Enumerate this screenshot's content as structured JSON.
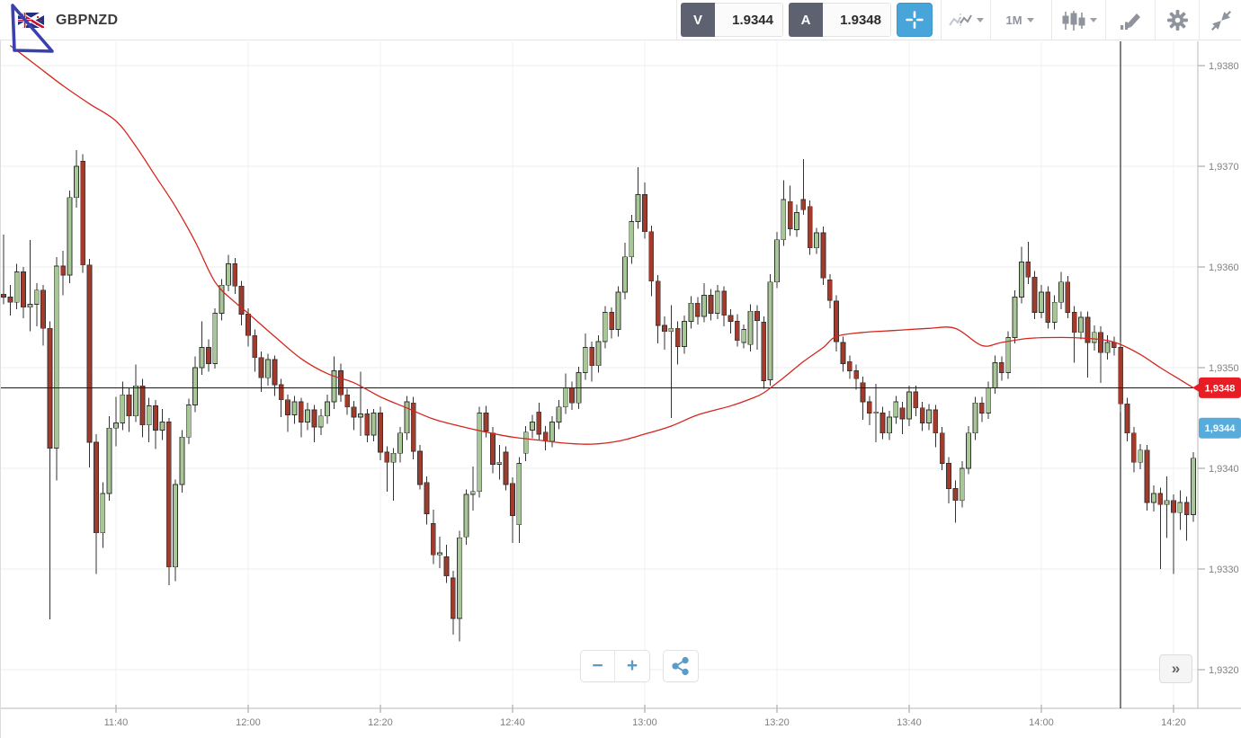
{
  "header": {
    "symbol": "GBPNZD",
    "sell": {
      "label": "V",
      "value": "1.9344"
    },
    "buy": {
      "label": "A",
      "value": "1.9348"
    },
    "timeframe": "1M"
  },
  "controls": {
    "zoom_out": "−",
    "zoom_in": "+",
    "expand": "»"
  },
  "icons": {
    "crosshair": "crosshair-icon",
    "chart_type": "chart-type-icon",
    "indicators": "candlestick-icon",
    "draw": "pencil-icon",
    "settings": "gear-icon",
    "collapse": "collapse-icon",
    "share": "share-icon",
    "flag": "gbp-nzd-flag-icon"
  },
  "chart_data": {
    "type": "candlestick",
    "symbol": "GBPNZD",
    "timeframe": "1M",
    "start_time": "11:23",
    "interval_minutes": 1,
    "price_base": 1.93,
    "pip_unit": 0.0001,
    "y_axis": {
      "min": 1.932,
      "max": 1.938,
      "tick_step": 0.001,
      "decimal_format": "comma",
      "labels": [
        "1,9380",
        "1,9370",
        "1,9360",
        "1,9350",
        "1,9340",
        "1,9330",
        "1,9320"
      ]
    },
    "x_axis": {
      "labels": [
        "11:40",
        "12:00",
        "12:20",
        "12:40",
        "13:00",
        "13:20",
        "13:40",
        "14:00",
        "14:20"
      ],
      "first_label_minute_index": 17,
      "label_every_minutes": 20
    },
    "ask_price": 1.9348,
    "bid_price": 1.9344,
    "ask_line": {
      "pips": 48,
      "badge": "1,9348",
      "color": "#e81c24",
      "line_color": "#1a1a1a"
    },
    "bid_badge": {
      "pips": 44,
      "label": "1,9344",
      "color": "#58acdc"
    },
    "vertical_marker_minute_index": 169,
    "colors": {
      "up_fill": "#a8c796",
      "down_fill": "#a23b2b",
      "stroke": "#333333",
      "wick": "#333333",
      "grid": "#ededed",
      "vgrid": "#f1f1f1",
      "axis": "#b9b9b9",
      "label": "#7f7f7f"
    },
    "ma_line": {
      "color": "#d4261d",
      "anchors_pips": [
        [
          1,
          82
        ],
        [
          5,
          80
        ],
        [
          9,
          78
        ],
        [
          13,
          76.2
        ],
        [
          17,
          74.5
        ],
        [
          20,
          72
        ],
        [
          23,
          69
        ],
        [
          26,
          66
        ],
        [
          29,
          62.5
        ],
        [
          32,
          58.5
        ],
        [
          35,
          56.5
        ],
        [
          37,
          55.4
        ],
        [
          41,
          53.1
        ],
        [
          45,
          50.9
        ],
        [
          49,
          49.4
        ],
        [
          53,
          48.5
        ],
        [
          57,
          47.1
        ],
        [
          61,
          46
        ],
        [
          65,
          44.9
        ],
        [
          69,
          44.2
        ],
        [
          73,
          43.6
        ],
        [
          77,
          43.1
        ],
        [
          81,
          42.8
        ],
        [
          85,
          42.5
        ],
        [
          89,
          42.4
        ],
        [
          93,
          42.7
        ],
        [
          97,
          43.4
        ],
        [
          101,
          44.2
        ],
        [
          105,
          45.3
        ],
        [
          110,
          46.2
        ],
        [
          113,
          46.9
        ],
        [
          115,
          47.5
        ],
        [
          118,
          49
        ],
        [
          121,
          50.6
        ],
        [
          124,
          52
        ],
        [
          126,
          53.1
        ],
        [
          130,
          53.5
        ],
        [
          135,
          53.7
        ],
        [
          140,
          53.9
        ],
        [
          144,
          53.9
        ],
        [
          148,
          52.2
        ],
        [
          151,
          52.5
        ],
        [
          155,
          52.9
        ],
        [
          160,
          53
        ],
        [
          164,
          52.9
        ],
        [
          167,
          52.7
        ],
        [
          169,
          52.3
        ],
        [
          172,
          51.3
        ],
        [
          175,
          50
        ],
        [
          178,
          48.8
        ],
        [
          180,
          48
        ]
      ]
    },
    "candles_ohlc_pips": [
      [
        57.3,
        63.2,
        56.3,
        57.0
      ],
      [
        57.0,
        58.2,
        55.2,
        56.5
      ],
      [
        56.5,
        60.3,
        55.8,
        59.5
      ],
      [
        59.5,
        60.0,
        54.9,
        56.0
      ],
      [
        56.0,
        62.7,
        53.6,
        56.3
      ],
      [
        56.3,
        58.4,
        54.1,
        57.7
      ],
      [
        57.7,
        58.2,
        52.2,
        53.9
      ],
      [
        53.9,
        54.6,
        25.0,
        42.0
      ],
      [
        42.0,
        61.0,
        38.8,
        60.1
      ],
      [
        60.1,
        61.6,
        57.2,
        59.2
      ],
      [
        59.2,
        67.6,
        58.4,
        66.9
      ],
      [
        66.9,
        71.6,
        65.9,
        70.0
      ],
      [
        70.5,
        71.2,
        59.4,
        60.2
      ],
      [
        60.2,
        60.8,
        40.1,
        42.6
      ],
      [
        42.6,
        43.4,
        29.5,
        33.6
      ],
      [
        33.6,
        38.6,
        32.1,
        37.5
      ],
      [
        37.5,
        45.2,
        36.8,
        44.0
      ],
      [
        44.0,
        47.1,
        42.2,
        44.5
      ],
      [
        44.5,
        48.6,
        43.8,
        47.3
      ],
      [
        47.3,
        48.0,
        43.6,
        45.2
      ],
      [
        45.2,
        50.3,
        44.6,
        48.2
      ],
      [
        48.2,
        48.9,
        43.1,
        44.3
      ],
      [
        44.3,
        47.0,
        42.6,
        46.2
      ],
      [
        46.2,
        46.8,
        41.9,
        43.8
      ],
      [
        43.8,
        45.9,
        42.8,
        44.6
      ],
      [
        44.6,
        45.0,
        28.4,
        30.2
      ],
      [
        30.2,
        38.9,
        28.8,
        38.4
      ],
      [
        38.4,
        43.8,
        37.6,
        43.1
      ],
      [
        43.1,
        46.9,
        42.4,
        46.3
      ],
      [
        46.3,
        51.1,
        45.6,
        50.0
      ],
      [
        50.0,
        54.6,
        49.3,
        52.0
      ],
      [
        52.0,
        52.8,
        49.6,
        50.4
      ],
      [
        50.4,
        55.9,
        49.9,
        55.4
      ],
      [
        55.4,
        58.8,
        54.7,
        58.2
      ],
      [
        58.2,
        61.2,
        57.6,
        60.3
      ],
      [
        60.3,
        60.9,
        57.3,
        58.1
      ],
      [
        58.1,
        58.6,
        54.2,
        55.3
      ],
      [
        55.3,
        55.9,
        52.1,
        53.2
      ],
      [
        53.2,
        53.8,
        49.6,
        51.0
      ],
      [
        51.0,
        51.6,
        47.6,
        49.0
      ],
      [
        49.0,
        51.4,
        48.2,
        50.8
      ],
      [
        50.8,
        51.2,
        47.2,
        48.3
      ],
      [
        48.3,
        48.9,
        45.1,
        46.8
      ],
      [
        46.8,
        47.3,
        43.6,
        45.3
      ],
      [
        45.3,
        47.2,
        44.4,
        46.6
      ],
      [
        46.6,
        47.0,
        43.1,
        44.6
      ],
      [
        44.6,
        46.5,
        43.8,
        45.8
      ],
      [
        45.8,
        46.3,
        42.6,
        44.1
      ],
      [
        44.1,
        45.9,
        43.3,
        45.2
      ],
      [
        45.2,
        47.3,
        44.4,
        46.6
      ],
      [
        46.6,
        51.1,
        45.9,
        49.7
      ],
      [
        49.7,
        50.4,
        46.6,
        47.3
      ],
      [
        47.3,
        47.9,
        45.3,
        46.1
      ],
      [
        46.1,
        46.7,
        43.8,
        45.1
      ],
      [
        45.1,
        49.6,
        43.2,
        45.4
      ],
      [
        45.4,
        45.9,
        42.6,
        43.3
      ],
      [
        43.3,
        45.9,
        42.7,
        45.5
      ],
      [
        45.5,
        46.1,
        40.8,
        41.6
      ],
      [
        41.6,
        42.2,
        37.7,
        40.6
      ],
      [
        40.6,
        42.0,
        36.8,
        41.5
      ],
      [
        41.5,
        44.1,
        40.6,
        43.5
      ],
      [
        43.5,
        47.2,
        42.8,
        46.6
      ],
      [
        46.5,
        47.1,
        40.9,
        41.7
      ],
      [
        41.7,
        42.3,
        37.9,
        38.4
      ],
      [
        38.6,
        39.2,
        34.4,
        35.5
      ],
      [
        34.5,
        35.9,
        30.5,
        31.4
      ],
      [
        31.4,
        33.2,
        30.1,
        31.6
      ],
      [
        31.2,
        32.4,
        28.6,
        29.3
      ],
      [
        29.1,
        29.8,
        23.5,
        25.1
      ],
      [
        25.1,
        33.8,
        22.8,
        33.1
      ],
      [
        33.2,
        37.9,
        32.4,
        37.4
      ],
      [
        37.4,
        40.2,
        35.8,
        37.7
      ],
      [
        37.7,
        46.1,
        37.1,
        45.5
      ],
      [
        45.5,
        46.2,
        43.1,
        43.7
      ],
      [
        43.5,
        44.1,
        39.5,
        40.4
      ],
      [
        40.4,
        42.3,
        38.9,
        40.6
      ],
      [
        41.6,
        42.2,
        37.8,
        38.4
      ],
      [
        38.5,
        39.1,
        32.6,
        35.3
      ],
      [
        34.4,
        41.1,
        32.6,
        40.5
      ],
      [
        41.5,
        44.2,
        40.7,
        43.6
      ],
      [
        43.8,
        45.3,
        43.0,
        44.6
      ],
      [
        45.6,
        46.5,
        42.8,
        43.4
      ],
      [
        43.6,
        44.2,
        41.8,
        42.7
      ],
      [
        42.7,
        45.2,
        42.1,
        44.6
      ],
      [
        44.6,
        46.8,
        43.9,
        46.1
      ],
      [
        46.1,
        49.4,
        45.4,
        48.0
      ],
      [
        48.0,
        48.6,
        45.8,
        46.5
      ],
      [
        46.5,
        50.1,
        45.9,
        49.5
      ],
      [
        49.5,
        53.4,
        48.8,
        52.0
      ],
      [
        52.0,
        52.6,
        48.6,
        50.2
      ],
      [
        50.2,
        53.2,
        49.5,
        52.6
      ],
      [
        52.6,
        56.1,
        51.9,
        55.5
      ],
      [
        55.5,
        56.0,
        52.9,
        53.8
      ],
      [
        53.8,
        58.1,
        53.1,
        57.5
      ],
      [
        57.5,
        62.4,
        56.8,
        61.0
      ],
      [
        61.0,
        65.2,
        60.3,
        64.5
      ],
      [
        64.5,
        69.9,
        63.8,
        67.2
      ],
      [
        67.2,
        68.4,
        62.8,
        63.5
      ],
      [
        63.5,
        64.1,
        57.1,
        58.6
      ],
      [
        58.6,
        59.2,
        52.4,
        54.2
      ],
      [
        54.2,
        55.1,
        51.8,
        53.6
      ],
      [
        53.6,
        56.2,
        45.0,
        53.9
      ],
      [
        53.9,
        54.6,
        50.3,
        52.1
      ],
      [
        52.1,
        55.2,
        51.4,
        54.6
      ],
      [
        54.6,
        57.1,
        53.9,
        56.4
      ],
      [
        56.4,
        57.0,
        54.3,
        55.1
      ],
      [
        55.1,
        58.4,
        54.5,
        57.2
      ],
      [
        57.2,
        57.8,
        54.7,
        55.4
      ],
      [
        55.4,
        58.2,
        54.8,
        57.6
      ],
      [
        57.6,
        58.1,
        54.1,
        55.2
      ],
      [
        55.2,
        55.8,
        53.4,
        54.6
      ],
      [
        54.6,
        55.3,
        52.1,
        52.7
      ],
      [
        52.5,
        54.3,
        51.9,
        53.8
      ],
      [
        52.3,
        56.3,
        51.6,
        55.6
      ],
      [
        55.6,
        56.2,
        51.8,
        54.7
      ],
      [
        54.5,
        55.1,
        47.9,
        48.7
      ],
      [
        48.8,
        59.3,
        48.2,
        58.5
      ],
      [
        58.5,
        63.5,
        57.9,
        62.7
      ],
      [
        62.7,
        68.6,
        62.1,
        66.7
      ],
      [
        66.5,
        68.1,
        63.1,
        63.8
      ],
      [
        63.7,
        66.2,
        63.0,
        65.4
      ],
      [
        66.7,
        70.7,
        65.2,
        65.7
      ],
      [
        66.0,
        66.6,
        61.2,
        61.9
      ],
      [
        61.9,
        63.9,
        61.3,
        63.4
      ],
      [
        63.4,
        64.0,
        58.2,
        58.9
      ],
      [
        58.7,
        59.3,
        55.9,
        56.7
      ],
      [
        56.6,
        57.2,
        51.6,
        52.6
      ],
      [
        52.5,
        53.1,
        49.6,
        50.4
      ],
      [
        50.6,
        51.2,
        48.9,
        49.7
      ],
      [
        49.7,
        50.3,
        47.8,
        48.9
      ],
      [
        48.5,
        49.1,
        44.8,
        46.6
      ],
      [
        46.6,
        47.2,
        44.3,
        45.5
      ],
      [
        45.5,
        48.4,
        42.6,
        45.6
      ],
      [
        45.5,
        46.1,
        42.9,
        43.5
      ],
      [
        43.5,
        45.7,
        42.8,
        45.1
      ],
      [
        45.1,
        47.2,
        44.4,
        46.6
      ],
      [
        46.0,
        46.6,
        43.4,
        44.9
      ],
      [
        44.9,
        48.2,
        44.2,
        47.6
      ],
      [
        47.6,
        48.2,
        45.2,
        46.0
      ],
      [
        46.0,
        46.6,
        43.7,
        44.5
      ],
      [
        44.5,
        46.4,
        43.8,
        45.8
      ],
      [
        45.8,
        46.3,
        42.1,
        43.5
      ],
      [
        43.5,
        44.1,
        39.8,
        40.5
      ],
      [
        40.5,
        41.1,
        36.5,
        38.0
      ],
      [
        38.0,
        38.8,
        34.6,
        36.8
      ],
      [
        36.8,
        40.7,
        36.1,
        40.0
      ],
      [
        40.0,
        44.2,
        39.4,
        43.5
      ],
      [
        43.5,
        47.1,
        42.8,
        46.5
      ],
      [
        46.5,
        47.1,
        44.6,
        45.5
      ],
      [
        45.5,
        48.6,
        44.9,
        48.0
      ],
      [
        48.0,
        51.2,
        47.4,
        50.5
      ],
      [
        50.5,
        51.1,
        48.7,
        49.5
      ],
      [
        49.5,
        53.6,
        48.9,
        53.0
      ],
      [
        53.0,
        57.7,
        52.4,
        57.0
      ],
      [
        57.0,
        62.0,
        56.4,
        60.5
      ],
      [
        60.5,
        62.5,
        58.3,
        59.0
      ],
      [
        59.0,
        59.6,
        54.8,
        55.5
      ],
      [
        55.5,
        58.2,
        54.9,
        57.5
      ],
      [
        57.5,
        58.1,
        53.9,
        54.5
      ],
      [
        54.5,
        57.2,
        53.8,
        56.5
      ],
      [
        56.5,
        59.5,
        55.8,
        58.5
      ],
      [
        58.5,
        59.1,
        54.9,
        55.5
      ],
      [
        55.5,
        56.1,
        50.5,
        53.5
      ],
      [
        53.5,
        55.6,
        52.8,
        55.0
      ],
      [
        55.0,
        55.6,
        49.0,
        52.5
      ],
      [
        52.5,
        54.2,
        51.7,
        53.5
      ],
      [
        53.5,
        54.1,
        48.5,
        51.5
      ],
      [
        51.5,
        53.2,
        50.8,
        52.5
      ],
      [
        52.5,
        53.1,
        51.2,
        52.0
      ],
      [
        52.0,
        52.6,
        45.6,
        46.4
      ],
      [
        46.4,
        47.0,
        42.7,
        43.5
      ],
      [
        43.5,
        44.1,
        39.6,
        40.6
      ],
      [
        40.6,
        42.4,
        39.9,
        41.8
      ],
      [
        41.8,
        42.3,
        35.8,
        36.6
      ],
      [
        36.6,
        38.3,
        35.7,
        37.5
      ],
      [
        37.5,
        38.1,
        30.0,
        36.4
      ],
      [
        36.4,
        39.2,
        33.1,
        36.8
      ],
      [
        36.8,
        37.4,
        29.5,
        35.6
      ],
      [
        35.6,
        37.8,
        33.9,
        36.6
      ],
      [
        36.6,
        37.2,
        32.8,
        35.4
      ],
      [
        35.4,
        41.6,
        34.7,
        41.0
      ]
    ]
  }
}
